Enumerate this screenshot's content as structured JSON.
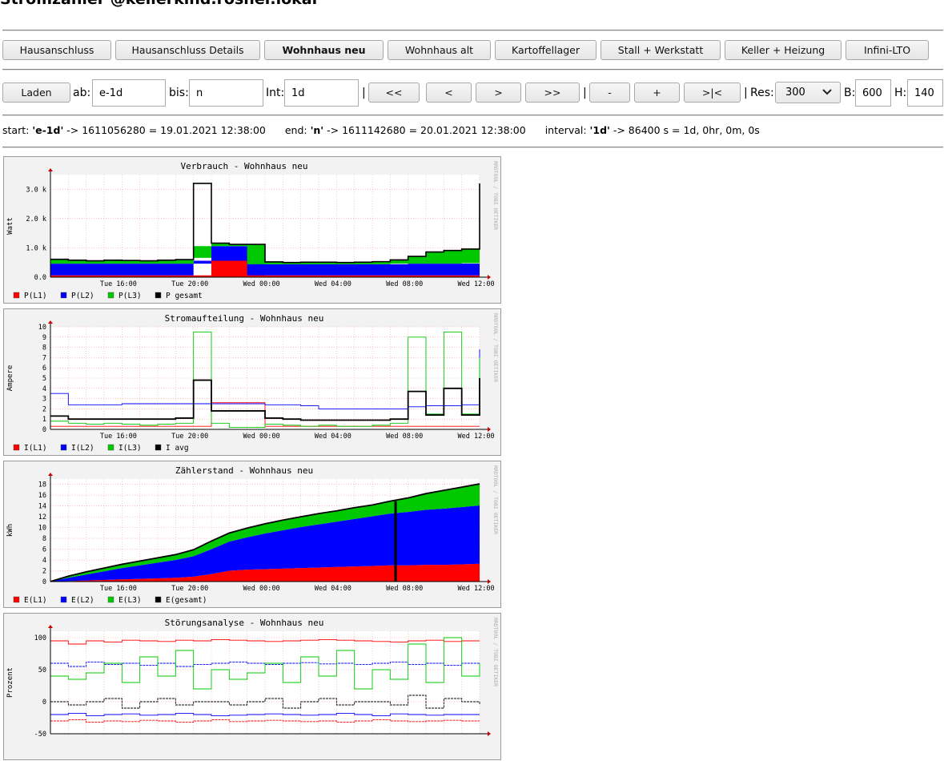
{
  "page": {
    "title": "Stromzähler @kellerkind.rosner.lokal"
  },
  "nav": {
    "tabs": [
      {
        "label": "Hausanschluss",
        "active": false
      },
      {
        "label": "Hausanschluss Details",
        "active": false
      },
      {
        "label": "Wohnhaus neu",
        "active": true
      },
      {
        "label": "Wohnhaus alt",
        "active": false
      },
      {
        "label": "Kartoffellager",
        "active": false
      },
      {
        "label": "Stall + Werkstatt",
        "active": false
      },
      {
        "label": "Keller + Heizung",
        "active": false
      },
      {
        "label": "Infini-LTO",
        "active": false
      }
    ]
  },
  "controls": {
    "load_label": "Laden",
    "from_label": "ab:",
    "from_value": "e-1d",
    "to_label": "bis:",
    "to_value": "n",
    "int_label": "Int:",
    "int_value": "1d",
    "sep": "|",
    "nav_buttons": [
      "<<",
      "<",
      ">",
      ">>"
    ],
    "zoom_buttons": [
      "-",
      "+",
      ">|<"
    ],
    "res_label": "Res:",
    "res_value": "300",
    "b_label": "B:",
    "b_value": "600",
    "h_label": "H:",
    "h_value": "140"
  },
  "info": {
    "start_label": "start:",
    "start_expr": "'e-1d'",
    "start_rest": "-> 1611056280 = 19.01.2021 12:38:00",
    "end_label": "end:",
    "end_expr": "'n'",
    "end_rest": "-> 1611142680 = 20.01.2021 12:38:00",
    "interval_label": "interval:",
    "interval_expr": "'1d'",
    "interval_rest": "-> 86400 s = 1d, 0hr, 0m, 0s"
  },
  "watermark": "RRDTOOL / TOBI OETIKER",
  "colors": {
    "l1": "#ff0000",
    "l2": "#0000ff",
    "l3": "#00c800",
    "total": "#000000",
    "grid": "#ff9999"
  },
  "chart_data": [
    {
      "type": "area",
      "title": "Verbrauch - Wohnhaus neu",
      "ylabel": "Watt",
      "x_ticks": [
        "Tue 16:00",
        "Tue 20:00",
        "Wed 00:00",
        "Wed 04:00",
        "Wed 08:00",
        "Wed 12:00"
      ],
      "y_ticks": [
        "0.0",
        "1.0 k",
        "2.0 k",
        "3.0 k"
      ],
      "ylim": [
        0,
        3500
      ],
      "legend": [
        "P(L1)",
        "P(L2)",
        "P(L3)",
        "P gesamt"
      ],
      "x": [
        0,
        1,
        2,
        3,
        4,
        5,
        6,
        7,
        8,
        9,
        10,
        11,
        12,
        13,
        14,
        15,
        16,
        17,
        18,
        19,
        20,
        21,
        22,
        23,
        24
      ],
      "series": [
        {
          "name": "P(L1)",
          "values": [
            60,
            60,
            60,
            60,
            60,
            60,
            60,
            60,
            60,
            560,
            560,
            560,
            60,
            60,
            60,
            60,
            60,
            60,
            60,
            60,
            60,
            60,
            60,
            60,
            60
          ]
        },
        {
          "name": "P(L2)",
          "values": [
            400,
            400,
            400,
            400,
            400,
            400,
            400,
            400,
            400,
            500,
            500,
            500,
            380,
            380,
            380,
            380,
            380,
            380,
            380,
            380,
            400,
            400,
            400,
            400,
            420
          ]
        },
        {
          "name": "P(L3)",
          "values": [
            150,
            120,
            100,
            120,
            110,
            100,
            120,
            140,
            200,
            100,
            60,
            60,
            80,
            60,
            70,
            70,
            60,
            70,
            90,
            150,
            250,
            400,
            450,
            500,
            900
          ]
        },
        {
          "name": "P gesamt",
          "values": [
            610,
            580,
            560,
            580,
            570,
            560,
            580,
            600,
            3200,
            1160,
            1120,
            1120,
            520,
            500,
            510,
            510,
            500,
            510,
            530,
            590,
            710,
            860,
            910,
            960,
            3200
          ]
        }
      ]
    },
    {
      "type": "line",
      "title": "Stromaufteilung - Wohnhaus neu",
      "ylabel": "Ampere",
      "x_ticks": [
        "Tue 16:00",
        "Tue 20:00",
        "Wed 00:00",
        "Wed 04:00",
        "Wed 08:00",
        "Wed 12:00"
      ],
      "y_ticks": [
        "0",
        "1",
        "2",
        "3",
        "4",
        "5",
        "6",
        "7",
        "8",
        "9",
        "10"
      ],
      "ylim": [
        0,
        10
      ],
      "legend": [
        "I(L1)",
        "I(L2)",
        "I(L3)",
        "I avg"
      ],
      "x": [
        0,
        1,
        2,
        3,
        4,
        5,
        6,
        7,
        8,
        9,
        10,
        11,
        12,
        13,
        14,
        15,
        16,
        17,
        18,
        19,
        20,
        21,
        22,
        23,
        24
      ],
      "series": [
        {
          "name": "I(L1)",
          "values": [
            0.3,
            0.3,
            0.3,
            0.3,
            0.3,
            0.3,
            0.3,
            0.3,
            0.3,
            2.6,
            2.6,
            2.6,
            0.3,
            0.3,
            0.3,
            0.3,
            0.3,
            0.3,
            0.3,
            0.3,
            0.3,
            0.3,
            0.3,
            0.3,
            0.3
          ]
        },
        {
          "name": "I(L2)",
          "values": [
            3.5,
            2.4,
            2.4,
            2.4,
            2.5,
            2.5,
            2.5,
            2.5,
            2.5,
            2.5,
            2.5,
            2.5,
            2.4,
            2.4,
            2.3,
            2.0,
            2.0,
            2.0,
            2.0,
            2.0,
            2.2,
            2.3,
            2.3,
            2.4,
            7.8
          ]
        },
        {
          "name": "I(L3)",
          "values": [
            0.8,
            0.6,
            0.5,
            0.6,
            0.5,
            0.4,
            0.5,
            0.6,
            9.5,
            0.6,
            0.2,
            0.2,
            0.5,
            0.4,
            0.3,
            0.4,
            0.3,
            0.3,
            0.4,
            0.6,
            9.0,
            1.5,
            9.5,
            1.5,
            7.0
          ]
        },
        {
          "name": "I avg",
          "values": [
            1.3,
            1.0,
            1.0,
            1.0,
            1.0,
            1.0,
            1.0,
            1.1,
            4.8,
            1.8,
            1.8,
            1.8,
            1.1,
            1.0,
            0.9,
            0.9,
            0.9,
            0.9,
            0.9,
            1.0,
            3.7,
            1.4,
            4.0,
            1.4,
            5.0
          ]
        }
      ]
    },
    {
      "type": "area",
      "title": "Zählerstand - Wohnhaus neu",
      "ylabel": "kWh",
      "x_ticks": [
        "Tue 16:00",
        "Tue 20:00",
        "Wed 00:00",
        "Wed 04:00",
        "Wed 08:00",
        "Wed 12:00"
      ],
      "y_ticks": [
        "0",
        "2",
        "4",
        "6",
        "8",
        "10",
        "12",
        "14",
        "16",
        "18"
      ],
      "ylim": [
        0,
        19
      ],
      "legend": [
        "E(L1)",
        "E(L2)",
        "E(L3)",
        "E(gesamt)"
      ],
      "x": [
        0,
        1,
        2,
        3,
        4,
        5,
        6,
        7,
        8,
        9,
        10,
        11,
        12,
        13,
        14,
        15,
        16,
        17,
        18,
        19,
        20,
        21,
        22,
        23,
        24
      ],
      "series": [
        {
          "name": "E(L1)",
          "values": [
            0,
            0.1,
            0.2,
            0.3,
            0.4,
            0.5,
            0.6,
            0.7,
            0.9,
            1.4,
            2.0,
            2.2,
            2.3,
            2.4,
            2.5,
            2.6,
            2.7,
            2.8,
            2.9,
            3.0,
            3.0,
            3.1,
            3.1,
            3.2,
            3.3
          ]
        },
        {
          "name": "E(L2)",
          "values": [
            0,
            0.6,
            1.1,
            1.6,
            2.1,
            2.5,
            2.9,
            3.3,
            3.8,
            4.6,
            5.4,
            6.0,
            6.6,
            7.1,
            7.6,
            8.0,
            8.4,
            8.8,
            9.2,
            9.6,
            9.9,
            10.2,
            10.4,
            10.6,
            10.8
          ]
        },
        {
          "name": "E(L3)",
          "values": [
            0,
            0.3,
            0.5,
            0.6,
            0.7,
            0.8,
            0.9,
            1.0,
            1.2,
            1.5,
            1.6,
            1.7,
            1.8,
            1.9,
            1.9,
            2.0,
            2.0,
            2.1,
            2.1,
            2.3,
            2.6,
            3.0,
            3.4,
            3.7,
            4.0
          ]
        },
        {
          "name": "E(gesamt)",
          "values": [
            0,
            1.0,
            1.8,
            2.5,
            3.2,
            3.8,
            4.4,
            5.0,
            5.9,
            7.5,
            9.0,
            9.9,
            10.7,
            11.4,
            12.0,
            12.6,
            13.1,
            13.7,
            14.2,
            14.9,
            15.5,
            16.3,
            16.9,
            17.5,
            18.1
          ]
        }
      ]
    },
    {
      "type": "line",
      "title": "Störungsanalyse - Wohnhaus neu",
      "ylabel": "Prozent",
      "x_ticks": [],
      "y_ticks": [
        "-50",
        "0",
        "50",
        "100"
      ],
      "ylim": [
        -50,
        110
      ],
      "legend": [],
      "x": [
        0,
        1,
        2,
        3,
        4,
        5,
        6,
        7,
        8,
        9,
        10,
        11,
        12,
        13,
        14,
        15,
        16,
        17,
        18,
        19,
        20,
        21,
        22,
        23,
        24
      ],
      "series": [
        {
          "values": [
            95,
            90,
            95,
            93,
            96,
            95,
            94,
            96,
            95,
            97,
            96,
            95,
            94,
            95,
            96,
            97,
            96,
            95,
            94,
            93,
            95,
            96,
            94,
            95,
            95
          ]
        },
        {
          "values": [
            60,
            55,
            62,
            58,
            60,
            57,
            60,
            55,
            58,
            60,
            62,
            60,
            58,
            60,
            61,
            59,
            60,
            58,
            60,
            62,
            58,
            60,
            57,
            60,
            60
          ]
        },
        {
          "values": [
            40,
            35,
            45,
            60,
            30,
            70,
            40,
            80,
            20,
            50,
            35,
            45,
            60,
            30,
            70,
            40,
            80,
            20,
            50,
            35,
            90,
            30,
            100,
            40,
            60
          ]
        },
        {
          "values": [
            0,
            -5,
            0,
            5,
            -10,
            0,
            5,
            -5,
            0,
            0,
            -5,
            0,
            5,
            -10,
            0,
            5,
            -5,
            0,
            0,
            -5,
            10,
            -10,
            5,
            0,
            -5
          ]
        },
        {
          "values": [
            -20,
            -18,
            -22,
            -20,
            -19,
            -21,
            -20,
            -18,
            -20,
            -22,
            -21,
            -20,
            -19,
            -20,
            -21,
            -20,
            -18,
            -20,
            -22,
            -19,
            -20,
            -21,
            -20,
            -20,
            -20
          ]
        },
        {
          "values": [
            -30,
            -28,
            -32,
            -30,
            -31,
            -29,
            -30,
            -32,
            -30,
            -28,
            -31,
            -30,
            -29,
            -30,
            -31,
            -30,
            -32,
            -30,
            -28,
            -30,
            -31,
            -30,
            -29,
            -30,
            -30
          ]
        }
      ]
    }
  ]
}
